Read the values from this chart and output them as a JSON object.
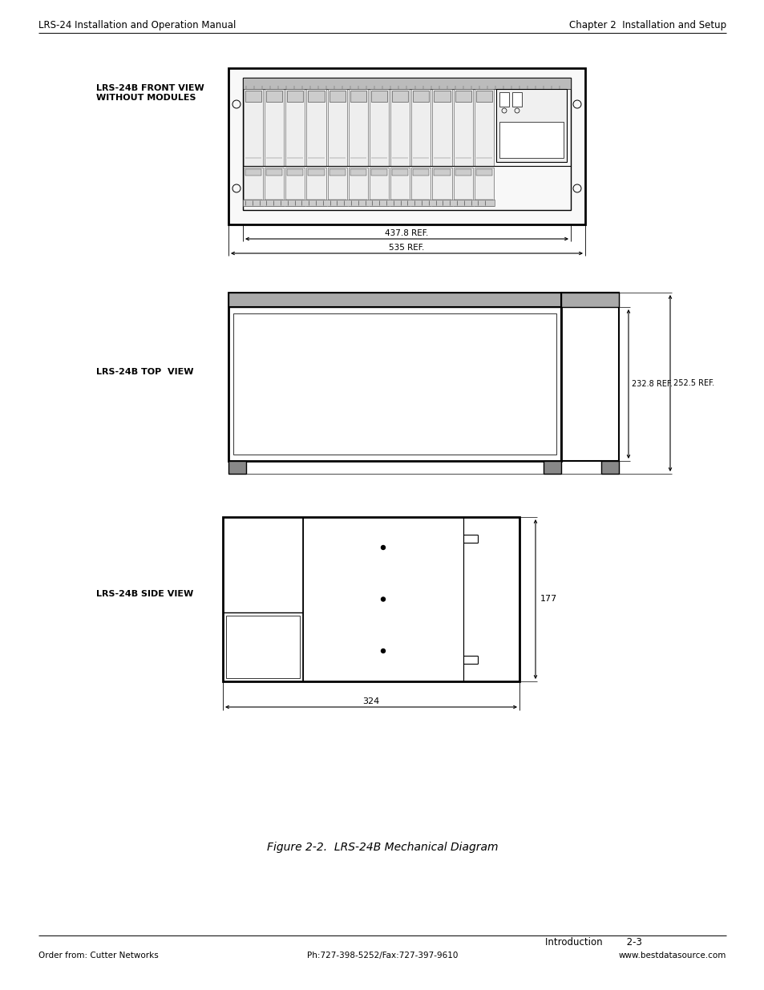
{
  "page_title_left": "LRS-24 Installation and Operation Manual",
  "page_title_right": "Chapter 2  Installation and Setup",
  "footer_left": "Order from: Cutter Networks",
  "footer_center": "Ph:727-398-5252/Fax:727-397-9610",
  "footer_right": "www.bestdatasource.com",
  "footer_right2": "Introduction        2-3",
  "figure_caption": "Figure 2-2.  LRS-24B Mechanical Diagram",
  "label_front": "LRS-24B FRONT VIEW\nWITHOUT MODULES",
  "label_top": "LRS-24B TOP  VIEW",
  "label_side": "LRS-24B SIDE VIEW",
  "dim_437": "437.8 REF.",
  "dim_535": "535 REF.",
  "dim_232": "232.8 REF.",
  "dim_252": "252.5 REF.",
  "dim_177": "177",
  "dim_324": "324",
  "bg_color": "#ffffff",
  "line_color": "#000000",
  "text_color": "#000000"
}
